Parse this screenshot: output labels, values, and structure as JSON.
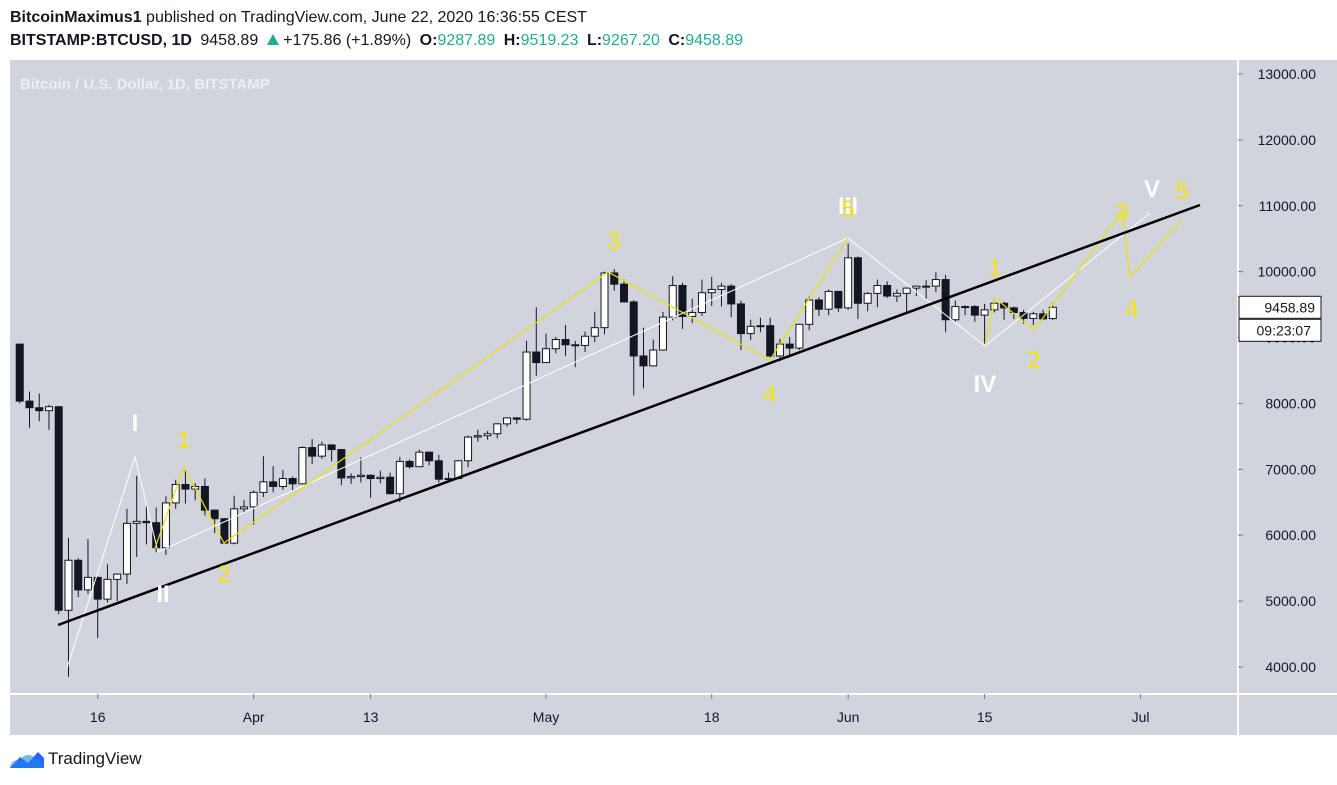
{
  "header": {
    "author": "BitcoinMaximus1",
    "published": "published on TradingView.com, June 22, 2020 16:36:55 CEST",
    "symbol": "BITSTAMP:BTCUSD, 1D",
    "last": "9458.89",
    "change": "+175.86 (+1.89%)",
    "ohlc": [
      {
        "label": "O:",
        "value": "9287.89"
      },
      {
        "label": "H:",
        "value": "9519.23"
      },
      {
        "label": "L:",
        "value": "9267.20"
      },
      {
        "label": "C:",
        "value": "9458.89"
      }
    ]
  },
  "chart_data": {
    "type": "candlestick",
    "title": "Bitcoin / U.S. Dollar, 1D, BITSTAMP",
    "x": [
      "03-08",
      "03-09",
      "03-10",
      "03-11",
      "03-12",
      "03-13",
      "03-14",
      "03-15",
      "03-16",
      "03-17",
      "03-18",
      "03-19",
      "03-20",
      "03-21",
      "03-22",
      "03-23",
      "03-24",
      "03-25",
      "03-26",
      "03-27",
      "03-28",
      "03-29",
      "03-30",
      "03-31",
      "04-01",
      "04-02",
      "04-03",
      "04-04",
      "04-05",
      "04-06",
      "04-07",
      "04-08",
      "04-09",
      "04-10",
      "04-11",
      "04-12",
      "04-13",
      "04-14",
      "04-15",
      "04-16",
      "04-17",
      "04-18",
      "04-19",
      "04-20",
      "04-21",
      "04-22",
      "04-23",
      "04-24",
      "04-25",
      "04-26",
      "04-27",
      "04-28",
      "04-29",
      "04-30",
      "05-01",
      "05-02",
      "05-03",
      "05-04",
      "05-05",
      "05-06",
      "05-07",
      "05-08",
      "05-09",
      "05-10",
      "05-11",
      "05-12",
      "05-13",
      "05-14",
      "05-15",
      "05-16",
      "05-17",
      "05-18",
      "05-19",
      "05-20",
      "05-21",
      "05-22",
      "05-23",
      "05-24",
      "05-25",
      "05-26",
      "05-27",
      "05-28",
      "05-29",
      "05-30",
      "05-31",
      "06-01",
      "06-02",
      "06-03",
      "06-04",
      "06-05",
      "06-06",
      "06-07",
      "06-08",
      "06-09",
      "06-10",
      "06-11",
      "06-12",
      "06-13",
      "06-14",
      "06-15",
      "06-16",
      "06-17",
      "06-18",
      "06-19",
      "06-20",
      "06-21",
      "06-22"
    ],
    "open": [
      8900,
      8035,
      7935,
      7890,
      7950,
      4860,
      5620,
      5170,
      5360,
      5030,
      5330,
      5410,
      6180,
      6210,
      6190,
      5810,
      6490,
      6770,
      6700,
      6740,
      6380,
      6250,
      5880,
      6400,
      6430,
      6650,
      6810,
      6740,
      6860,
      6780,
      7330,
      7200,
      7370,
      7300,
      6870,
      6890,
      6910,
      6860,
      6880,
      6630,
      7120,
      7040,
      7260,
      7130,
      6850,
      6860,
      7130,
      7490,
      7510,
      7540,
      7690,
      7780,
      7760,
      8780,
      8620,
      8830,
      8970,
      8890,
      8880,
      9020,
      9150,
      9980,
      9810,
      9540,
      8720,
      8570,
      8810,
      9310,
      9790,
      9320,
      9380,
      9680,
      9730,
      9780,
      9510,
      9060,
      9170,
      9180,
      8720,
      8900,
      8840,
      9200,
      9570,
      9430,
      9700,
      9450,
      10210,
      9520,
      9670,
      9790,
      9630,
      9670,
      9750,
      9780,
      9780,
      9880,
      9270,
      9470,
      9470,
      9340,
      9420,
      9520,
      9450,
      9380,
      9290,
      9360,
      9287.89
    ],
    "high": [
      8900,
      8180,
      8150,
      7980,
      7960,
      5960,
      5650,
      5940,
      5370,
      5560,
      5420,
      6400,
      6900,
      6450,
      6420,
      6590,
      6840,
      6980,
      6790,
      6860,
      6390,
      6260,
      6600,
      6530,
      6680,
      7200,
      7050,
      6990,
      6890,
      7350,
      7460,
      7420,
      7380,
      7300,
      6940,
      7180,
      6920,
      6980,
      6950,
      7190,
      7150,
      7300,
      7260,
      7220,
      6950,
      7140,
      7510,
      7600,
      7580,
      7700,
      7790,
      7790,
      8950,
      9460,
      9060,
      9010,
      9190,
      8950,
      9090,
      9390,
      10000,
      10040,
      9880,
      9570,
      9150,
      8970,
      9390,
      9930,
      9830,
      9590,
      9880,
      9920,
      9830,
      9810,
      9560,
      9270,
      9300,
      9300,
      8980,
      9010,
      9210,
      9620,
      9610,
      9730,
      9700,
      10430,
      10230,
      9690,
      9880,
      9850,
      9730,
      9760,
      9790,
      9870,
      9990,
      9950,
      9560,
      9490,
      9490,
      9510,
      9580,
      9540,
      9470,
      9420,
      9390,
      9420,
      9519.23
    ],
    "low": [
      8000,
      7630,
      7730,
      7600,
      4800,
      3850,
      5060,
      5110,
      4440,
      4980,
      5000,
      5260,
      5670,
      5860,
      5740,
      5700,
      6400,
      6480,
      6530,
      6300,
      6030,
      5880,
      5860,
      6350,
      6160,
      6580,
      6650,
      6690,
      6680,
      6770,
      7080,
      7160,
      7120,
      6760,
      6780,
      6800,
      6570,
      6790,
      6620,
      6500,
      7010,
      7040,
      7060,
      6800,
      6810,
      6850,
      7030,
      7420,
      7450,
      7470,
      7650,
      7690,
      7740,
      8420,
      8620,
      8760,
      8720,
      8550,
      8780,
      8930,
      9050,
      9710,
      9540,
      8120,
      8230,
      8560,
      8800,
      9260,
      9130,
      9220,
      9330,
      9480,
      9470,
      9310,
      8810,
      8960,
      9080,
      8700,
      8640,
      8700,
      8810,
      9110,
      9330,
      9340,
      9390,
      9420,
      9280,
      9400,
      9460,
      9600,
      9540,
      9380,
      9630,
      9580,
      9690,
      9080,
      9240,
      9340,
      9240,
      8900,
      9380,
      9270,
      9280,
      9210,
      9190,
      9270,
      9267.2
    ],
    "close": [
      8035,
      7935,
      7890,
      7950,
      4860,
      5620,
      5170,
      5360,
      5030,
      5330,
      5410,
      6180,
      6210,
      6190,
      5810,
      6490,
      6770,
      6700,
      6740,
      6380,
      6250,
      5880,
      6400,
      6430,
      6650,
      6810,
      6740,
      6860,
      6780,
      7330,
      7200,
      7370,
      7300,
      6870,
      6890,
      6910,
      6860,
      6880,
      6630,
      7120,
      7040,
      7260,
      7130,
      6850,
      6860,
      7130,
      7490,
      7510,
      7540,
      7690,
      7780,
      7760,
      8780,
      8620,
      8830,
      8970,
      8890,
      8880,
      9020,
      9150,
      9980,
      9810,
      9540,
      8720,
      8570,
      8810,
      9310,
      9790,
      9320,
      9380,
      9680,
      9730,
      9780,
      9510,
      9060,
      9170,
      9180,
      8720,
      8900,
      8840,
      9200,
      9570,
      9430,
      9700,
      9450,
      10210,
      9520,
      9670,
      9790,
      9630,
      9670,
      9750,
      9780,
      9780,
      9880,
      9270,
      9470,
      9470,
      9340,
      9420,
      9520,
      9450,
      9380,
      9290,
      9360,
      9283.03,
      9458.89
    ],
    "up_color": "#ffffff",
    "down_color": "#131722",
    "xlim": [
      "03-07",
      "07-11"
    ],
    "xticks": [
      {
        "value": "03-16",
        "label": "16"
      },
      {
        "value": "04-01",
        "label": "Apr"
      },
      {
        "value": "04-13",
        "label": "13"
      },
      {
        "value": "05-01",
        "label": "May"
      },
      {
        "value": "05-18",
        "label": "18"
      },
      {
        "value": "06-01",
        "label": "Jun"
      },
      {
        "value": "06-15",
        "label": "15"
      },
      {
        "value": "07-01",
        "label": "Jul"
      }
    ],
    "ylim": [
      3590,
      13212
    ],
    "yticks": [
      {
        "value": 4000,
        "label": "4000.00"
      },
      {
        "value": 5000,
        "label": "5000.00"
      },
      {
        "value": 6000,
        "label": "6000.00"
      },
      {
        "value": 7000,
        "label": "7000.00"
      },
      {
        "value": 8000,
        "label": "8000.00"
      },
      {
        "value": 9000,
        "label": "9000.00"
      },
      {
        "value": 10000,
        "label": "10000.00"
      },
      {
        "value": 11000,
        "label": "11000.00"
      },
      {
        "value": 12000,
        "label": "12000.00"
      },
      {
        "value": 13000,
        "label": "13000.00"
      }
    ],
    "grid": false,
    "last_price_label": "9458.89",
    "countdown": "09:23:07",
    "annotations": [
      {
        "text": "I",
        "color": "#ffffff"
      },
      {
        "text": "II",
        "color": "#ffffff"
      },
      {
        "text": "III",
        "color": "#ffffff"
      },
      {
        "text": "IV",
        "color": "#ffffff"
      },
      {
        "text": "V",
        "color": "#ffffff"
      },
      {
        "text": "1",
        "color": "#f5e600"
      },
      {
        "text": "2",
        "color": "#f5e600"
      },
      {
        "text": "3",
        "color": "#f5e600"
      },
      {
        "text": "4",
        "color": "#f5e600"
      },
      {
        "text": "5",
        "color": "#f5e600"
      },
      {
        "text": "1",
        "color": "#f5e600"
      },
      {
        "text": "2",
        "color": "#f5e600"
      },
      {
        "text": "3",
        "color": "#f5e600"
      },
      {
        "text": "4",
        "color": "#f5e600"
      },
      {
        "text": "5",
        "color": "#f5e600"
      }
    ]
  },
  "footer": {
    "brand": "TradingView"
  }
}
